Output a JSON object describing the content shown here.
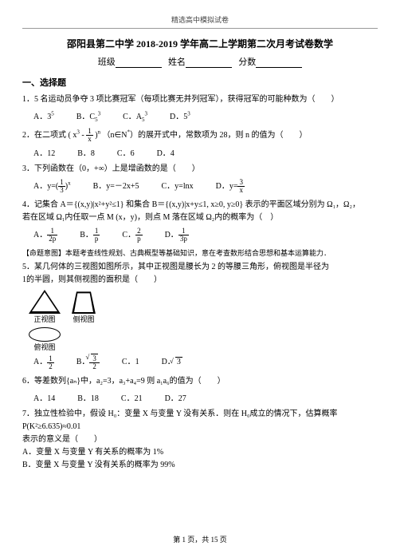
{
  "topHeader": "精选高中模拟试卷",
  "title": "邵阳县第二中学 2018-2019 学年高二上学期第二次月考试卷数学",
  "sub": {
    "a": "班级",
    "b": "姓名",
    "c": "分数"
  },
  "sect1": "一、选择题",
  "q1": {
    "t": "1．5 名运动员争夺 3 项比赛冠军（每项比赛无并列冠军），获得冠军的可能种数为（　　）",
    "a": "A．3",
    "b": "B．C",
    "c": "C．A",
    "d": "D．5"
  },
  "q2": {
    "t": "2．在二项式 ( x",
    "t2": "（n∈N",
    "t3": "）的展开式中，常数项为 28，则 n 的值为（　　）",
    "a": "A．12",
    "b": "B．8",
    "c": "C．6",
    "d": "D．4"
  },
  "q3": {
    "t": "3．下列函数在（0，+∞）上是增函数的是（　　）",
    "a": "A．y=",
    "b": "B．y=－2x+5",
    "c": "C．y=lnx",
    "d": "D．y="
  },
  "q4": {
    "t": "4．记集合 A＝{(x,y)|x²+y²≤1} 和集合 B＝{(x,y)|x+y≤1, x≥0, y≥0} 表示的平面区域分别为 Ω₁，Ω₂，",
    "t2": "若在区域 Ω₁内任取一点 M (x，y)，则点 M 落在区域 Ω₂内的概率为（　）",
    "a": "A．",
    "b": "B．",
    "c": "C．",
    "d": "D．",
    "note": "【命题意图】本题考查线性规划、古典概型等基础知识，意在考查数形结合思想和基本运算能力．"
  },
  "q5": {
    "t": "5．某几何体的三视图如图所示，其中正视图是腰长为 2 的等腰三角形，俯视图是半径为",
    "t2": "1的半圆，则其侧视图的面积是（　　）",
    "v1": "正视图",
    "v2": "侧视图",
    "v3": "俯视图",
    "a": "A．",
    "b": "B．",
    "c": "C．1",
    "d": "D．"
  },
  "q6": {
    "t": "6．等差数列{aₙ}中，a₂=3，a₃+a₄=9 则 a₁a₆的值为（　　）",
    "a": "A．14",
    "b": "B．18",
    "c": "C．21",
    "d": "D．27"
  },
  "q7": {
    "t": "7．独立性检验中，假设 H₀：变量 X 与变量 Y 没有关系．则在 H₀成立的情况下，估算概率 P(K²≥6.635)≈0.01",
    "t2": "表示的意义是（　　）",
    "a": "A．变量 X 与变量 Y 有关系的概率为 1%",
    "b": "B．变量 X 与变量 Y 没有关系的概率为 99%"
  },
  "footer": "第 1 页，共 15 页"
}
